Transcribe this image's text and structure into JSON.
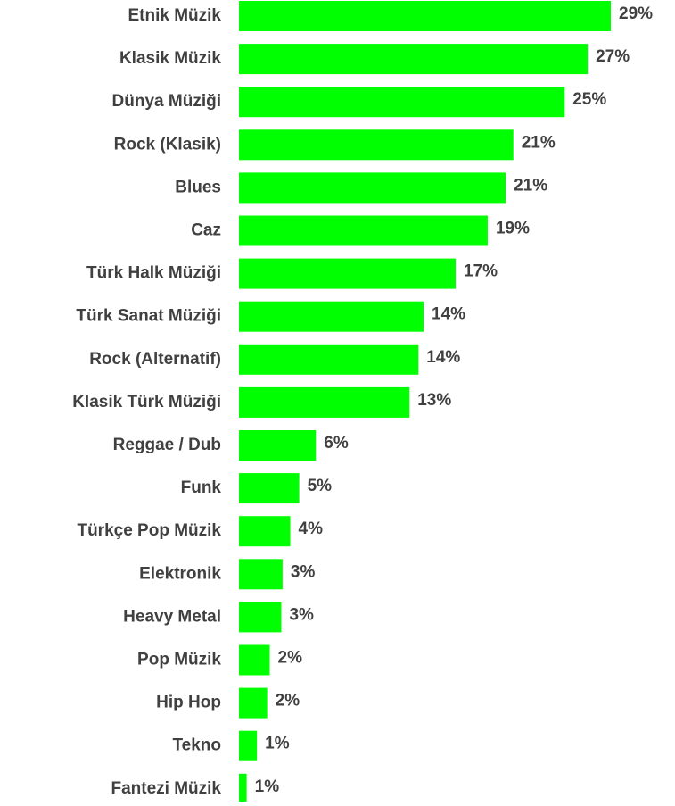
{
  "chart_data": {
    "type": "barh",
    "categories": [
      "Etnik Müzik",
      "Klasik Müzik",
      "Dünya Müziği",
      "Rock (Klasik)",
      "Blues",
      "Caz",
      "Türk Halk Müziği",
      "Türk Sanat Müziği",
      "Rock (Alternatif)",
      "Klasik Türk Müziği",
      "Reggae / Dub",
      "Funk",
      "Türkçe Pop Müzik",
      "Elektronik",
      "Heavy Metal",
      "Pop Müzik",
      "Hip Hop",
      "Tekno",
      "Fantezi Müzik"
    ],
    "values": [
      29.0,
      27.2,
      25.4,
      21.4,
      20.8,
      19.4,
      16.9,
      14.4,
      14.0,
      13.3,
      6.0,
      4.7,
      4.0,
      3.4,
      3.3,
      2.4,
      2.2,
      1.4,
      0.6
    ],
    "value_labels": [
      "29%",
      "27%",
      "25%",
      "21%",
      "21%",
      "19%",
      "17%",
      "14%",
      "14%",
      "13%",
      "6%",
      "5%",
      "4%",
      "3%",
      "3%",
      "2%",
      "2%",
      "1%",
      "1%"
    ],
    "color": "#00ff00"
  }
}
